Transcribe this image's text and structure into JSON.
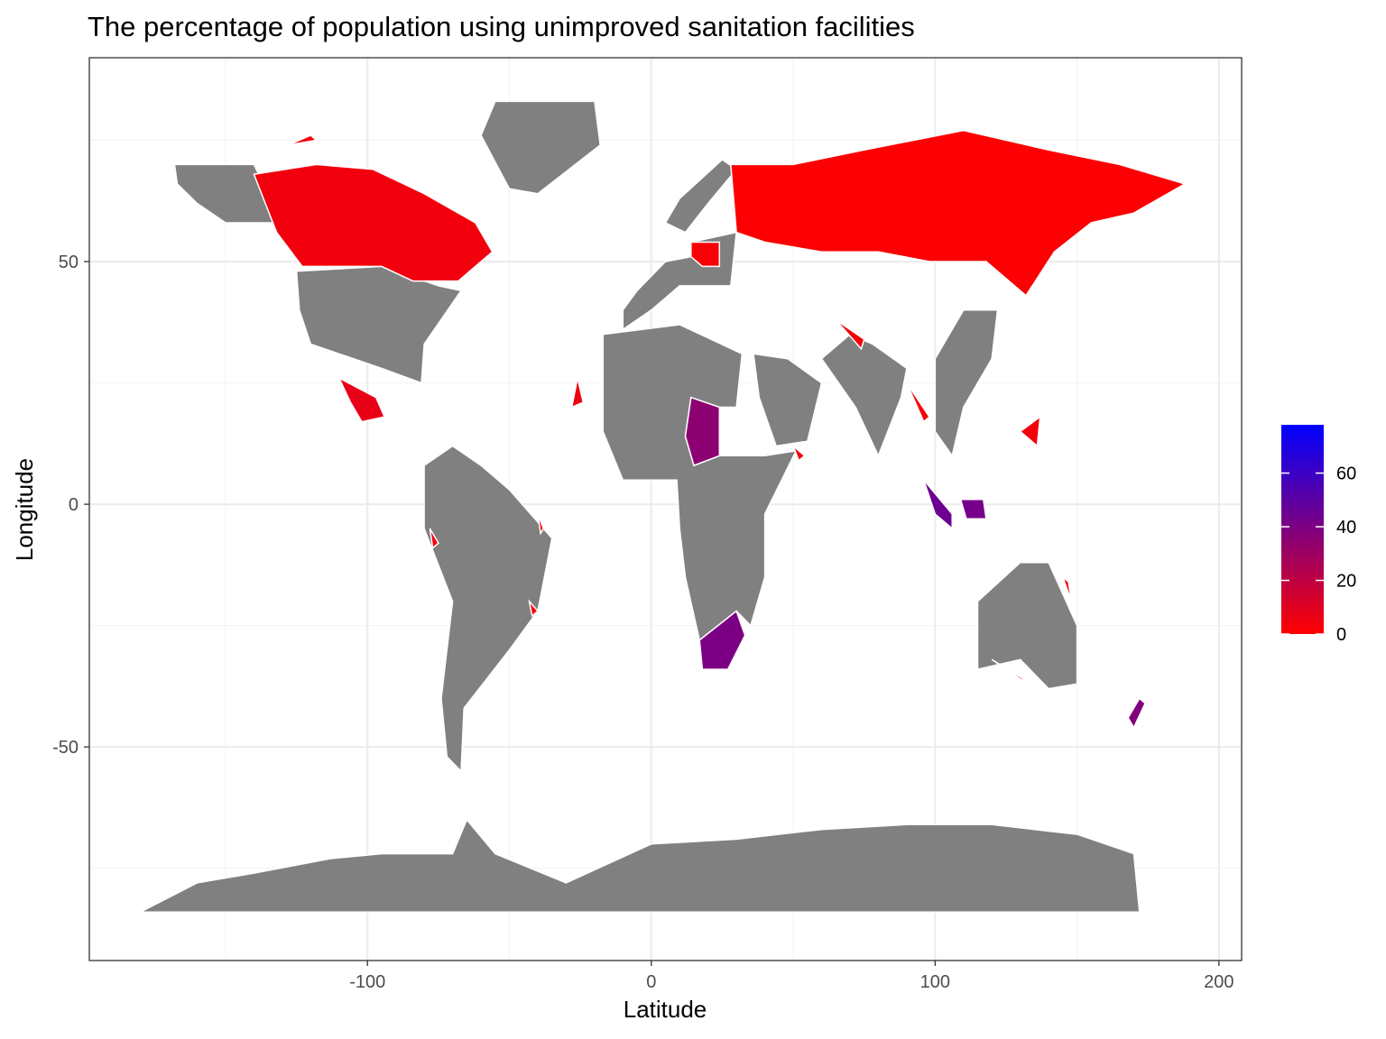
{
  "chart_data": {
    "type": "choropleth-map",
    "title": "The percentage of population using unimproved sanitation facilities",
    "xlabel": "Latitude",
    "ylabel": "Longitude",
    "xlim": [
      -198,
      208
    ],
    "ylim": [
      -94,
      92
    ],
    "x_ticks": [
      -100,
      0,
      100,
      200
    ],
    "x_tick_labels": [
      "-100",
      "0",
      "100",
      "200"
    ],
    "y_ticks": [
      -50,
      0,
      50
    ],
    "y_tick_labels": [
      "-50",
      "0",
      "50"
    ],
    "x_minor": [
      -150,
      -50,
      50,
      150
    ],
    "y_minor": [
      -75,
      -25,
      25,
      75
    ],
    "grid": true,
    "legend": {
      "position": "right",
      "title": "",
      "range": [
        0,
        78
      ],
      "ticks": [
        0,
        20,
        40,
        60
      ],
      "tick_labels": [
        "0",
        "20",
        "40",
        "60"
      ],
      "low_color": "#FF0000",
      "high_color": "#0000FF"
    },
    "na_color": "#808080",
    "regions": [
      {
        "value": 4,
        "poly": [
          [
            -140,
            68
          ],
          [
            -118,
            70
          ],
          [
            -98,
            69
          ],
          [
            -80,
            64
          ],
          [
            -62,
            58
          ],
          [
            -56,
            52
          ],
          [
            -68,
            46
          ],
          [
            -84,
            46
          ],
          [
            -95,
            49
          ],
          [
            -123,
            49
          ],
          [
            -132,
            56
          ]
        ]
      },
      {
        "value": 1,
        "poly": [
          [
            28,
            70
          ],
          [
            50,
            70
          ],
          [
            75,
            73
          ],
          [
            110,
            77
          ],
          [
            140,
            73
          ],
          [
            165,
            70
          ],
          [
            188,
            66
          ],
          [
            170,
            60
          ],
          [
            155,
            58
          ],
          [
            142,
            52
          ],
          [
            132,
            43
          ],
          [
            118,
            50
          ],
          [
            98,
            50
          ],
          [
            80,
            52
          ],
          [
            60,
            52
          ],
          [
            40,
            54
          ],
          [
            30,
            56
          ]
        ]
      },
      {
        "value": 2,
        "poly": [
          [
            14,
            54
          ],
          [
            24,
            54
          ],
          [
            24,
            49
          ],
          [
            18,
            49
          ],
          [
            14,
            51
          ]
        ]
      },
      {
        "value": 7,
        "poly": [
          [
            -110,
            26
          ],
          [
            -97,
            22
          ],
          [
            -94,
            18
          ],
          [
            -102,
            17
          ],
          [
            -106,
            21
          ]
        ]
      },
      {
        "value": 35,
        "poly": [
          [
            14,
            22
          ],
          [
            24,
            20
          ],
          [
            24,
            10
          ],
          [
            15,
            8
          ],
          [
            12,
            14
          ]
        ]
      },
      {
        "value": 40,
        "poly": [
          [
            17,
            -28
          ],
          [
            30,
            -22
          ],
          [
            33,
            -27
          ],
          [
            27,
            -34
          ],
          [
            18,
            -34
          ]
        ]
      },
      {
        "value": 45,
        "poly": [
          [
            96,
            5
          ],
          [
            106,
            -2
          ],
          [
            106,
            -5
          ],
          [
            100,
            -2
          ]
        ]
      },
      {
        "value": 42,
        "poly": [
          [
            109,
            1
          ],
          [
            117,
            1
          ],
          [
            118,
            -3
          ],
          [
            111,
            -3
          ]
        ]
      },
      {
        "value": 3,
        "poly": [
          [
            145,
            -15
          ],
          [
            147,
            -16
          ],
          [
            148,
            -20
          ]
        ]
      },
      {
        "value": 4,
        "poly": [
          [
            120,
            -32
          ],
          [
            130,
            -36
          ],
          [
            134,
            -37
          ]
        ]
      },
      {
        "value": 5,
        "poly": [
          [
            -26,
            26
          ],
          [
            -24,
            21
          ],
          [
            -28,
            20
          ]
        ]
      },
      {
        "value": 4,
        "poly": [
          [
            50,
            12
          ],
          [
            54,
            10
          ],
          [
            52,
            9
          ]
        ]
      },
      {
        "value": 3,
        "poly": [
          [
            65,
            38
          ],
          [
            75,
            34
          ],
          [
            74,
            32
          ]
        ]
      },
      {
        "value": 2,
        "poly": [
          [
            90,
            25
          ],
          [
            98,
            18
          ],
          [
            96,
            17
          ]
        ]
      },
      {
        "value": 38,
        "poly": [
          [
            168,
            -44
          ],
          [
            172,
            -40
          ],
          [
            174,
            -41
          ],
          [
            170,
            -46
          ]
        ]
      },
      {
        "value": 4,
        "poly": [
          [
            -78,
            -5
          ],
          [
            -75,
            -8
          ],
          [
            -77,
            -9
          ]
        ]
      },
      {
        "value": 3,
        "poly": [
          [
            -40,
            -2
          ],
          [
            -38,
            -5
          ],
          [
            -39,
            -6
          ]
        ]
      },
      {
        "value": 3,
        "poly": [
          [
            -43,
            -20
          ],
          [
            -40,
            -22
          ],
          [
            -42,
            -23
          ]
        ]
      },
      {
        "value": 2,
        "poly": [
          [
            -128,
            74
          ],
          [
            -120,
            76
          ],
          [
            -118,
            75
          ]
        ]
      },
      {
        "value": 3,
        "poly": [
          [
            130,
            15
          ],
          [
            137,
            18
          ],
          [
            136,
            12
          ]
        ]
      }
    ],
    "na_regions": [
      {
        "poly": [
          [
            -168,
            70
          ],
          [
            -140,
            70
          ],
          [
            -130,
            58
          ],
          [
            -150,
            58
          ],
          [
            -160,
            62
          ],
          [
            -167,
            66
          ]
        ]
      },
      {
        "poly": [
          [
            -125,
            48
          ],
          [
            -95,
            49
          ],
          [
            -75,
            45
          ],
          [
            -67,
            44
          ],
          [
            -80,
            33
          ],
          [
            -81,
            25
          ],
          [
            -95,
            28
          ],
          [
            -110,
            31
          ],
          [
            -120,
            33
          ],
          [
            -124,
            40
          ]
        ]
      },
      {
        "poly": [
          [
            -55,
            83
          ],
          [
            -20,
            83
          ],
          [
            -18,
            74
          ],
          [
            -40,
            64
          ],
          [
            -50,
            65
          ],
          [
            -60,
            76
          ]
        ]
      },
      {
        "poly": [
          [
            -113,
            -73
          ],
          [
            -95,
            -72
          ],
          [
            -70,
            -72
          ],
          [
            -65,
            -65
          ],
          [
            -55,
            -72
          ],
          [
            -30,
            -78
          ],
          [
            0,
            -70
          ],
          [
            30,
            -69
          ],
          [
            60,
            -67
          ],
          [
            90,
            -66
          ],
          [
            120,
            -66
          ],
          [
            150,
            -68
          ],
          [
            170,
            -72
          ],
          [
            172,
            -84
          ],
          [
            -180,
            -84
          ],
          [
            -160,
            -78
          ],
          [
            -140,
            -76
          ]
        ]
      },
      {
        "poly": [
          [
            -80,
            8
          ],
          [
            -70,
            12
          ],
          [
            -60,
            8
          ],
          [
            -50,
            3
          ],
          [
            -35,
            -7
          ],
          [
            -40,
            -22
          ],
          [
            -50,
            -30
          ],
          [
            -58,
            -36
          ],
          [
            -66,
            -42
          ],
          [
            -67,
            -55
          ],
          [
            -72,
            -52
          ],
          [
            -74,
            -40
          ],
          [
            -70,
            -20
          ],
          [
            -80,
            -5
          ]
        ]
      },
      {
        "poly": [
          [
            -17,
            35
          ],
          [
            10,
            37
          ],
          [
            32,
            31
          ],
          [
            30,
            20
          ],
          [
            24,
            20
          ],
          [
            14,
            22
          ],
          [
            12,
            14
          ],
          [
            15,
            8
          ],
          [
            24,
            10
          ],
          [
            40,
            10
          ],
          [
            51,
            11
          ],
          [
            40,
            -2
          ],
          [
            40,
            -15
          ],
          [
            35,
            -25
          ],
          [
            30,
            -22
          ],
          [
            17,
            -28
          ],
          [
            12,
            -15
          ],
          [
            10,
            -5
          ],
          [
            9,
            5
          ],
          [
            -10,
            5
          ],
          [
            -17,
            15
          ]
        ]
      },
      {
        "poly": [
          [
            -10,
            36
          ],
          [
            0,
            40
          ],
          [
            10,
            45
          ],
          [
            28,
            45
          ],
          [
            30,
            56
          ],
          [
            14,
            54
          ],
          [
            14,
            51
          ],
          [
            5,
            50
          ],
          [
            -5,
            44
          ],
          [
            -10,
            40
          ]
        ]
      },
      {
        "poly": [
          [
            36,
            31
          ],
          [
            48,
            30
          ],
          [
            60,
            25
          ],
          [
            55,
            13
          ],
          [
            44,
            12
          ],
          [
            38,
            22
          ]
        ]
      },
      {
        "poly": [
          [
            60,
            30
          ],
          [
            70,
            35
          ],
          [
            78,
            33
          ],
          [
            90,
            28
          ],
          [
            88,
            22
          ],
          [
            80,
            10
          ],
          [
            72,
            20
          ]
        ]
      },
      {
        "poly": [
          [
            100,
            30
          ],
          [
            110,
            40
          ],
          [
            122,
            40
          ],
          [
            120,
            30
          ],
          [
            110,
            20
          ],
          [
            106,
            10
          ],
          [
            100,
            15
          ]
        ]
      },
      {
        "poly": [
          [
            5,
            58
          ],
          [
            10,
            63
          ],
          [
            25,
            71
          ],
          [
            30,
            69
          ],
          [
            20,
            62
          ],
          [
            12,
            56
          ]
        ]
      },
      {
        "poly": [
          [
            115,
            -20
          ],
          [
            130,
            -12
          ],
          [
            140,
            -12
          ],
          [
            150,
            -25
          ],
          [
            150,
            -37
          ],
          [
            140,
            -38
          ],
          [
            130,
            -32
          ],
          [
            115,
            -34
          ]
        ]
      }
    ]
  }
}
